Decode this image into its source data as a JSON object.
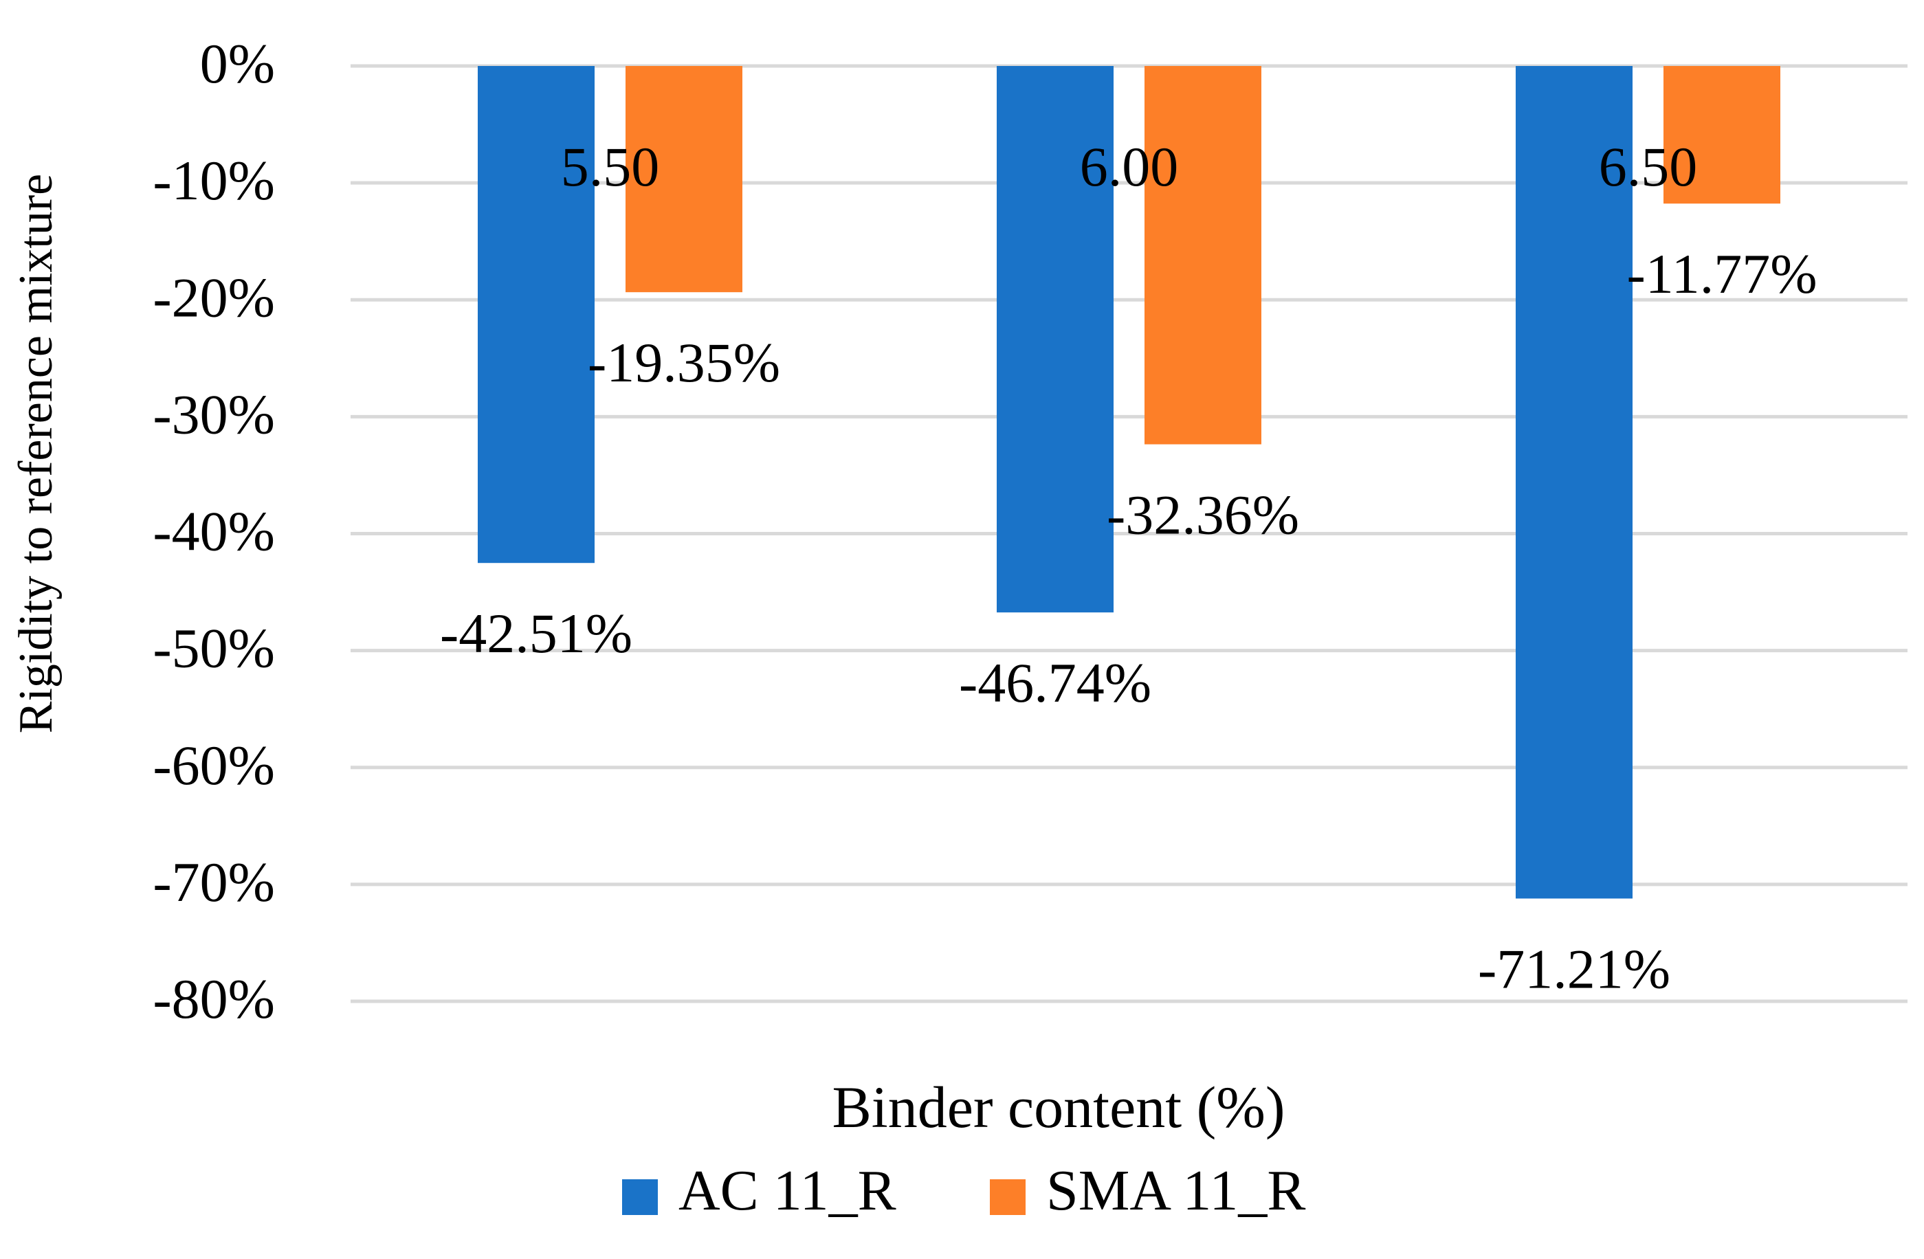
{
  "chart_data": {
    "type": "bar",
    "title": "",
    "xlabel": "Binder content (%)",
    "ylabel": "Rigidity to reference mixture",
    "categories": [
      "5.50",
      "6.00",
      "6.50"
    ],
    "series": [
      {
        "name": "AC 11_R",
        "values": [
          -42.51,
          -46.74,
          -71.21
        ],
        "labels": [
          "-42.51%",
          "-46.74%",
          "-71.21%"
        ],
        "color": "#1a73c8"
      },
      {
        "name": "SMA 11_R",
        "values": [
          -19.35,
          -32.36,
          -11.77
        ],
        "labels": [
          "-19.35%",
          "-32.36%",
          "-11.77%"
        ],
        "color": "#fd7f28"
      }
    ],
    "ylim": [
      -80,
      0
    ],
    "yticks": [
      0,
      -10,
      -20,
      -30,
      -40,
      -50,
      -60,
      -70,
      -80
    ],
    "ytick_labels": [
      "0%",
      "-10%",
      "-20%",
      "-30%",
      "-40%",
      "-50%",
      "-60%",
      "-70%",
      "-80%"
    ],
    "grid": true,
    "gridline_color": "#d9d9d9",
    "legend_position": "bottom"
  }
}
